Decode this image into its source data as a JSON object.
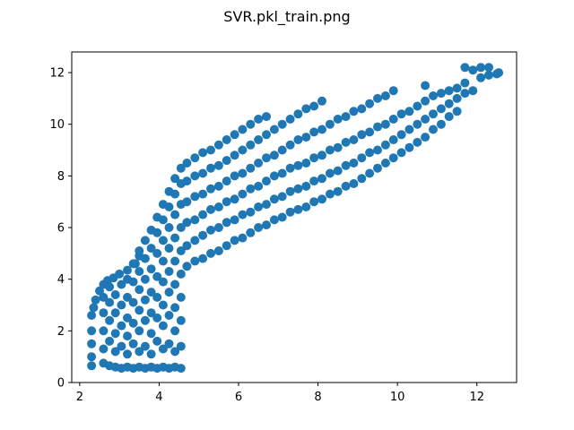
{
  "chart_data": {
    "type": "scatter",
    "title": "SVR.pkl_train.png",
    "xlabel": "",
    "ylabel": "",
    "xlim": [
      1.8,
      13.0
    ],
    "ylim": [
      0,
      12.8
    ],
    "xticks": [
      2,
      4,
      6,
      8,
      10,
      12
    ],
    "yticks": [
      0,
      2,
      4,
      6,
      8,
      10,
      12
    ],
    "grid": false,
    "color": "#1f77b4",
    "series": [
      {
        "values": [
          [
            2.3,
            0.65
          ],
          [
            2.3,
            1.0
          ],
          [
            2.3,
            1.5
          ],
          [
            2.3,
            2.0
          ],
          [
            2.3,
            2.6
          ],
          [
            2.35,
            2.9
          ],
          [
            2.4,
            3.2
          ],
          [
            2.5,
            3.55
          ],
          [
            2.6,
            3.8
          ],
          [
            2.7,
            3.95
          ],
          [
            2.85,
            4.05
          ],
          [
            3.0,
            4.2
          ],
          [
            3.2,
            4.35
          ],
          [
            3.4,
            4.6
          ],
          [
            3.5,
            4.9
          ],
          [
            2.6,
            0.75
          ],
          [
            2.6,
            1.3
          ],
          [
            2.6,
            2.0
          ],
          [
            2.6,
            2.7
          ],
          [
            2.6,
            3.3
          ],
          [
            2.75,
            0.65
          ],
          [
            2.75,
            1.6
          ],
          [
            2.75,
            2.4
          ],
          [
            2.75,
            3.1
          ],
          [
            2.75,
            3.7
          ],
          [
            2.9,
            0.6
          ],
          [
            2.9,
            1.2
          ],
          [
            2.9,
            1.9
          ],
          [
            2.9,
            2.7
          ],
          [
            2.9,
            3.4
          ],
          [
            3.05,
            0.55
          ],
          [
            3.05,
            1.4
          ],
          [
            3.05,
            2.2
          ],
          [
            3.05,
            3.0
          ],
          [
            3.05,
            3.8
          ],
          [
            3.2,
            0.6
          ],
          [
            3.2,
            1.1
          ],
          [
            3.2,
            1.8
          ],
          [
            3.2,
            2.5
          ],
          [
            3.2,
            3.3
          ],
          [
            3.2,
            4.0
          ],
          [
            3.35,
            0.55
          ],
          [
            3.35,
            1.5
          ],
          [
            3.35,
            2.3
          ],
          [
            3.35,
            3.1
          ],
          [
            3.35,
            3.9
          ],
          [
            3.35,
            4.6
          ],
          [
            3.5,
            0.6
          ],
          [
            3.5,
            1.2
          ],
          [
            3.5,
            2.0
          ],
          [
            3.5,
            2.8
          ],
          [
            3.5,
            3.6
          ],
          [
            3.5,
            4.3
          ],
          [
            3.5,
            5.1
          ],
          [
            3.65,
            0.55
          ],
          [
            3.65,
            1.4
          ],
          [
            3.65,
            2.4
          ],
          [
            3.65,
            3.2
          ],
          [
            3.65,
            4.0
          ],
          [
            3.65,
            4.8
          ],
          [
            3.65,
            5.5
          ],
          [
            3.8,
            0.6
          ],
          [
            3.8,
            1.1
          ],
          [
            3.8,
            1.9
          ],
          [
            3.8,
            2.7
          ],
          [
            3.8,
            3.5
          ],
          [
            3.8,
            4.4
          ],
          [
            3.8,
            5.2
          ],
          [
            3.8,
            5.9
          ],
          [
            3.95,
            0.55
          ],
          [
            3.95,
            1.6
          ],
          [
            3.95,
            2.5
          ],
          [
            3.95,
            3.3
          ],
          [
            3.95,
            4.1
          ],
          [
            3.95,
            5.0
          ],
          [
            3.95,
            5.8
          ],
          [
            3.95,
            6.4
          ],
          [
            4.1,
            0.6
          ],
          [
            4.1,
            1.3
          ],
          [
            4.1,
            2.2
          ],
          [
            4.1,
            3.0
          ],
          [
            4.1,
            3.9
          ],
          [
            4.1,
            4.7
          ],
          [
            4.1,
            5.5
          ],
          [
            4.1,
            6.3
          ],
          [
            4.1,
            6.9
          ],
          [
            4.25,
            0.55
          ],
          [
            4.25,
            1.5
          ],
          [
            4.25,
            2.6
          ],
          [
            4.25,
            3.5
          ],
          [
            4.25,
            4.3
          ],
          [
            4.25,
            5.2
          ],
          [
            4.25,
            6.0
          ],
          [
            4.25,
            6.8
          ],
          [
            4.25,
            7.4
          ],
          [
            4.4,
            0.6
          ],
          [
            4.4,
            1.2
          ],
          [
            4.4,
            2.0
          ],
          [
            4.4,
            2.9
          ],
          [
            4.4,
            3.8
          ],
          [
            4.4,
            4.7
          ],
          [
            4.4,
            5.6
          ],
          [
            4.4,
            6.5
          ],
          [
            4.4,
            7.3
          ],
          [
            4.4,
            7.9
          ],
          [
            4.55,
            0.55
          ],
          [
            4.55,
            1.4
          ],
          [
            4.55,
            2.4
          ],
          [
            4.55,
            3.3
          ],
          [
            4.55,
            4.2
          ],
          [
            4.55,
            5.1
          ],
          [
            4.55,
            6.0
          ],
          [
            4.55,
            6.9
          ],
          [
            4.55,
            7.7
          ],
          [
            4.55,
            8.3
          ],
          [
            4.7,
            4.5
          ],
          [
            4.7,
            5.3
          ],
          [
            4.7,
            6.2
          ],
          [
            4.7,
            7.0
          ],
          [
            4.7,
            7.8
          ],
          [
            4.7,
            8.5
          ],
          [
            4.9,
            4.7
          ],
          [
            4.9,
            5.5
          ],
          [
            4.9,
            6.3
          ],
          [
            4.9,
            7.2
          ],
          [
            4.9,
            8.0
          ],
          [
            4.9,
            8.7
          ],
          [
            5.1,
            4.8
          ],
          [
            5.1,
            5.7
          ],
          [
            5.1,
            6.5
          ],
          [
            5.1,
            7.3
          ],
          [
            5.1,
            8.1
          ],
          [
            5.1,
            8.9
          ],
          [
            5.3,
            5.0
          ],
          [
            5.3,
            5.9
          ],
          [
            5.3,
            6.7
          ],
          [
            5.3,
            7.5
          ],
          [
            5.3,
            8.3
          ],
          [
            5.3,
            9.0
          ],
          [
            5.5,
            5.1
          ],
          [
            5.5,
            6.0
          ],
          [
            5.5,
            6.8
          ],
          [
            5.5,
            7.6
          ],
          [
            5.5,
            8.4
          ],
          [
            5.5,
            9.2
          ],
          [
            5.7,
            5.3
          ],
          [
            5.7,
            6.2
          ],
          [
            5.7,
            7.0
          ],
          [
            5.7,
            7.8
          ],
          [
            5.7,
            8.6
          ],
          [
            5.7,
            9.4
          ],
          [
            5.9,
            5.5
          ],
          [
            5.9,
            6.3
          ],
          [
            5.9,
            7.1
          ],
          [
            5.9,
            8.0
          ],
          [
            5.9,
            8.8
          ],
          [
            5.9,
            9.6
          ],
          [
            6.1,
            5.6
          ],
          [
            6.1,
            6.5
          ],
          [
            6.1,
            7.3
          ],
          [
            6.1,
            8.1
          ],
          [
            6.1,
            9.0
          ],
          [
            6.1,
            9.8
          ],
          [
            6.3,
            5.8
          ],
          [
            6.3,
            6.6
          ],
          [
            6.3,
            7.5
          ],
          [
            6.3,
            8.3
          ],
          [
            6.3,
            9.2
          ],
          [
            6.3,
            10.0
          ],
          [
            6.5,
            6.0
          ],
          [
            6.5,
            6.8
          ],
          [
            6.5,
            7.6
          ],
          [
            6.5,
            8.5
          ],
          [
            6.5,
            9.4
          ],
          [
            6.5,
            10.2
          ],
          [
            6.7,
            6.1
          ],
          [
            6.7,
            6.9
          ],
          [
            6.7,
            7.8
          ],
          [
            6.7,
            8.7
          ],
          [
            6.7,
            9.6
          ],
          [
            6.7,
            10.3
          ],
          [
            6.9,
            6.3
          ],
          [
            6.9,
            7.1
          ],
          [
            6.9,
            8.0
          ],
          [
            6.9,
            8.8
          ],
          [
            6.9,
            9.8
          ],
          [
            7.1,
            6.4
          ],
          [
            7.1,
            7.2
          ],
          [
            7.1,
            8.1
          ],
          [
            7.1,
            9.0
          ],
          [
            7.1,
            10.0
          ],
          [
            7.3,
            6.6
          ],
          [
            7.3,
            7.4
          ],
          [
            7.3,
            8.3
          ],
          [
            7.3,
            9.2
          ],
          [
            7.3,
            10.2
          ],
          [
            7.5,
            6.7
          ],
          [
            7.5,
            7.5
          ],
          [
            7.5,
            8.4
          ],
          [
            7.5,
            9.4
          ],
          [
            7.5,
            10.4
          ],
          [
            7.7,
            6.8
          ],
          [
            7.7,
            7.6
          ],
          [
            7.7,
            8.5
          ],
          [
            7.7,
            9.5
          ],
          [
            7.7,
            10.6
          ],
          [
            7.9,
            7.0
          ],
          [
            7.9,
            7.8
          ],
          [
            7.9,
            8.7
          ],
          [
            7.9,
            9.7
          ],
          [
            7.9,
            10.7
          ],
          [
            8.1,
            7.1
          ],
          [
            8.1,
            7.9
          ],
          [
            8.1,
            8.8
          ],
          [
            8.1,
            9.8
          ],
          [
            8.1,
            10.9
          ],
          [
            8.3,
            7.3
          ],
          [
            8.3,
            8.1
          ],
          [
            8.3,
            9.0
          ],
          [
            8.3,
            10.0
          ],
          [
            8.5,
            7.4
          ],
          [
            8.5,
            8.2
          ],
          [
            8.5,
            9.1
          ],
          [
            8.5,
            10.2
          ],
          [
            8.7,
            7.6
          ],
          [
            8.7,
            8.4
          ],
          [
            8.7,
            9.3
          ],
          [
            8.7,
            10.3
          ],
          [
            8.9,
            7.7
          ],
          [
            8.9,
            8.5
          ],
          [
            8.9,
            9.4
          ],
          [
            8.9,
            10.5
          ],
          [
            9.1,
            7.9
          ],
          [
            9.1,
            8.7
          ],
          [
            9.1,
            9.6
          ],
          [
            9.1,
            10.6
          ],
          [
            9.3,
            8.1
          ],
          [
            9.3,
            8.9
          ],
          [
            9.3,
            9.7
          ],
          [
            9.3,
            10.8
          ],
          [
            9.5,
            8.3
          ],
          [
            9.5,
            9.0
          ],
          [
            9.5,
            9.9
          ],
          [
            9.5,
            11.0
          ],
          [
            9.7,
            8.5
          ],
          [
            9.7,
            9.2
          ],
          [
            9.7,
            10.0
          ],
          [
            9.7,
            11.1
          ],
          [
            9.9,
            8.7
          ],
          [
            9.9,
            9.4
          ],
          [
            9.9,
            10.2
          ],
          [
            9.9,
            11.3
          ],
          [
            10.1,
            8.9
          ],
          [
            10.1,
            9.6
          ],
          [
            10.1,
            10.4
          ],
          [
            10.3,
            9.1
          ],
          [
            10.3,
            9.8
          ],
          [
            10.3,
            10.5
          ],
          [
            10.5,
            9.3
          ],
          [
            10.5,
            10.0
          ],
          [
            10.5,
            10.7
          ],
          [
            10.7,
            9.5
          ],
          [
            10.7,
            10.2
          ],
          [
            10.7,
            10.9
          ],
          [
            10.7,
            11.5
          ],
          [
            10.9,
            9.8
          ],
          [
            10.9,
            10.4
          ],
          [
            10.9,
            11.1
          ],
          [
            11.1,
            10.0
          ],
          [
            11.1,
            10.6
          ],
          [
            11.1,
            11.2
          ],
          [
            11.3,
            10.3
          ],
          [
            11.3,
            10.8
          ],
          [
            11.3,
            11.3
          ],
          [
            11.5,
            10.5
          ],
          [
            11.5,
            11.0
          ],
          [
            11.5,
            11.4
          ],
          [
            11.7,
            11.2
          ],
          [
            11.7,
            11.6
          ],
          [
            11.7,
            12.2
          ],
          [
            11.9,
            11.3
          ],
          [
            11.9,
            12.1
          ],
          [
            12.1,
            11.8
          ],
          [
            12.1,
            12.2
          ],
          [
            12.3,
            11.9
          ],
          [
            12.3,
            12.2
          ],
          [
            12.5,
            11.95
          ],
          [
            12.55,
            12.0
          ]
        ]
      }
    ]
  }
}
